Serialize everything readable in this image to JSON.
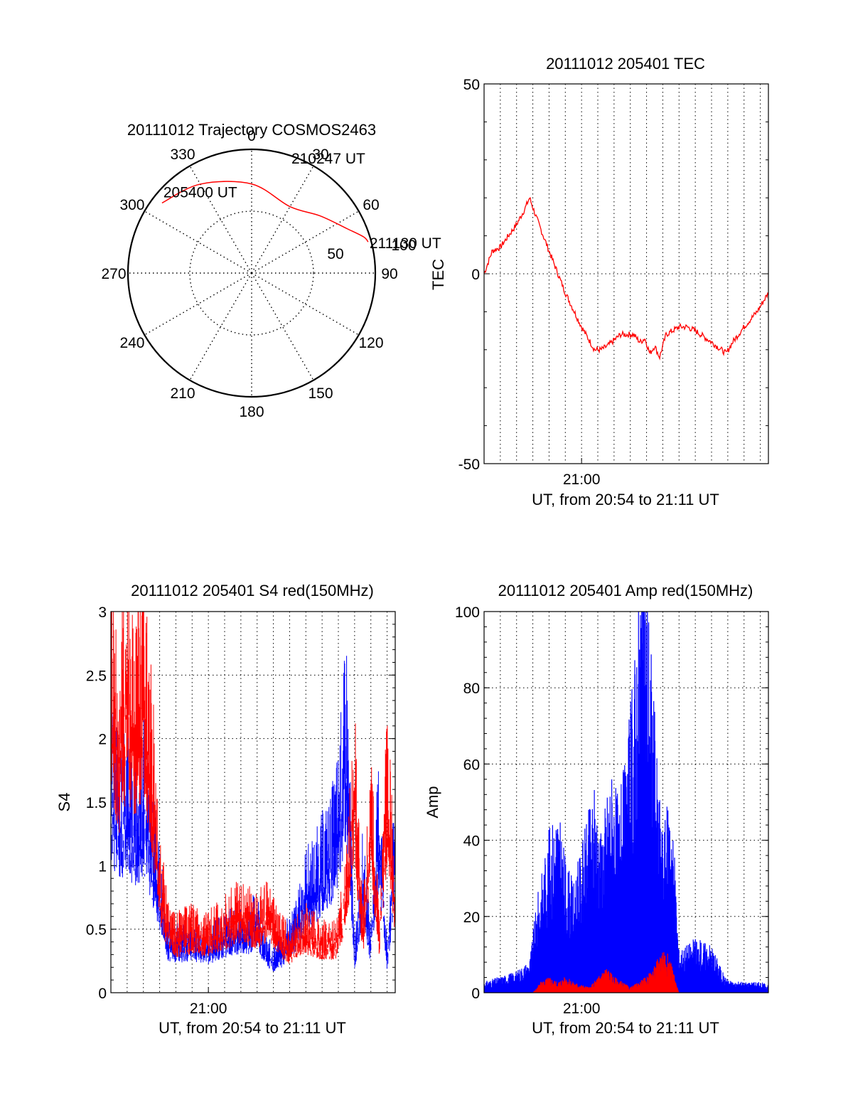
{
  "chart_data": [
    {
      "id": "trajectory",
      "type": "polar",
      "title": "20111012 Trajectory COSMOS2463",
      "azimuth_labels": [
        "0",
        "30",
        "60",
        "90",
        "120",
        "150",
        "180",
        "210",
        "240",
        "270",
        "300",
        "330"
      ],
      "radial_labels": [
        "50",
        "100"
      ],
      "rlim": [
        0,
        100
      ],
      "grid": true,
      "series": [
        {
          "color": "#ff0000",
          "points": [
            {
              "az": -52,
              "r": 92
            },
            {
              "az": -30,
              "r": 83
            },
            {
              "az": 0,
              "r": 72
            },
            {
              "az": 30,
              "r": 62
            },
            {
              "az": 50,
              "r": 72
            },
            {
              "az": 65,
              "r": 85
            },
            {
              "az": 72,
              "r": 95
            },
            {
              "az": 75,
              "r": 97.5
            }
          ]
        }
      ],
      "annotations": [
        {
          "text": "205400 UT",
          "az": -52,
          "r": 92
        },
        {
          "text": "210247 UT",
          "az": 30,
          "r": 62
        },
        {
          "text": "211130 UT",
          "az": 75,
          "r": 97.5
        }
      ]
    },
    {
      "id": "tec",
      "type": "line",
      "title": "20111012 205401 TEC",
      "xlabel": "UT, from 20:54 to 21:11 UT",
      "ylabel": "TEC",
      "xlim": [
        0,
        17.5
      ],
      "ylim": [
        -50,
        50
      ],
      "xticks": [
        {
          "x": 6,
          "label": "21:00"
        }
      ],
      "yticks": [
        "-50",
        "0",
        "50"
      ],
      "grid": true,
      "series": [
        {
          "color": "#ff0000",
          "x": [
            0,
            0.5,
            1.0,
            1.5,
            2.0,
            2.5,
            2.8,
            3.2,
            4.0,
            5.0,
            6.0,
            6.8,
            7.2,
            7.6,
            8.4,
            9.2,
            9.6,
            9.9,
            10.2,
            10.5,
            10.8,
            11.2,
            12.0,
            12.5,
            13.0,
            14.0,
            14.6,
            14.9,
            15.3,
            16.0,
            16.8,
            17.5
          ],
          "y": [
            0,
            6,
            7,
            10,
            13,
            17,
            20,
            15,
            6,
            -5,
            -14,
            -20,
            -20,
            -19,
            -16,
            -16,
            -18,
            -17,
            -21,
            -19,
            -22,
            -16,
            -14,
            -14,
            -15,
            -18,
            -20,
            -21,
            -18,
            -14,
            -10,
            -5
          ]
        }
      ]
    },
    {
      "id": "s4",
      "type": "line",
      "title": "20111012 205401 S4 red(150MHz)",
      "xlabel": "UT, from 20:54 to 21:11 UT",
      "ylabel": "S4",
      "xlim": [
        0,
        17.5
      ],
      "ylim": [
        0,
        3
      ],
      "xticks": [
        {
          "x": 6,
          "label": "21:00"
        }
      ],
      "yticks": [
        "0",
        "0.5",
        "1",
        "1.5",
        "2",
        "2.5",
        "3"
      ],
      "grid": true,
      "series": [
        {
          "color": "#0000ff",
          "x": [
            0,
            0.5,
            1.0,
            1.5,
            2.0,
            2.5,
            3.0,
            3.5,
            4.0,
            5.0,
            6.0,
            7.0,
            8.0,
            8.5,
            9.0,
            9.5,
            10.0,
            10.5,
            11.0,
            11.5,
            12.0,
            12.5,
            13.0,
            13.5,
            14.0,
            14.5,
            15.0,
            15.5,
            16.0,
            16.5,
            17.0,
            17.5
          ],
          "y": [
            1.9,
            1.5,
            1.8,
            1.4,
            1.7,
            1.3,
            0.9,
            0.45,
            0.42,
            0.45,
            0.4,
            0.5,
            0.55,
            0.55,
            0.65,
            0.35,
            0.3,
            0.35,
            0.5,
            0.6,
            0.9,
            0.95,
            1.1,
            1.2,
            1.5,
            2.2,
            0.3,
            1.0,
            0.4,
            1.5,
            0.3,
            1.3
          ]
        },
        {
          "color": "#ff0000",
          "x": [
            0,
            0.5,
            1.0,
            1.5,
            2.0,
            2.5,
            3.0,
            3.5,
            4.0,
            5.0,
            6.0,
            7.0,
            8.0,
            8.5,
            9.0,
            9.5,
            10.0,
            10.5,
            11.0,
            11.5,
            12.0,
            12.5,
            13.0,
            13.5,
            14.0,
            14.5,
            15.0,
            15.5,
            16.0,
            16.5,
            17.0,
            17.5
          ],
          "y": [
            2.9,
            2.2,
            2.8,
            2.4,
            2.7,
            2.0,
            1.0,
            0.6,
            0.5,
            0.55,
            0.5,
            0.6,
            0.7,
            0.65,
            0.6,
            0.7,
            0.6,
            0.5,
            0.4,
            0.5,
            0.55,
            0.5,
            0.45,
            0.45,
            0.5,
            1.0,
            1.8,
            0.5,
            1.6,
            0.5,
            1.8,
            0.8
          ]
        }
      ]
    },
    {
      "id": "amp",
      "type": "line",
      "title": "20111012 205401 Amp red(150MHz)",
      "xlabel": "UT, from 20:54 to 21:11 UT",
      "ylabel": "Amp",
      "xlim": [
        0,
        17.5
      ],
      "ylim": [
        0,
        100
      ],
      "xticks": [
        {
          "x": 6,
          "label": "21:00"
        }
      ],
      "yticks": [
        "0",
        "20",
        "40",
        "60",
        "80",
        "100"
      ],
      "grid": true,
      "series": [
        {
          "color": "#0000ff",
          "x": [
            0,
            1.0,
            2.0,
            2.8,
            3.3,
            4.0,
            4.5,
            5.0,
            5.5,
            6.2,
            6.8,
            7.2,
            7.8,
            8.3,
            8.8,
            9.2,
            9.5,
            9.8,
            10.2,
            10.7,
            11.0,
            11.5,
            12.0,
            13.0,
            14.0,
            14.8,
            15.3,
            16.0,
            17.0,
            17.5
          ],
          "y": [
            2,
            3,
            4,
            6,
            18,
            30,
            35,
            25,
            20,
            30,
            38,
            30,
            42,
            35,
            45,
            60,
            75,
            90,
            70,
            40,
            30,
            38,
            8,
            10,
            9,
            3,
            2,
            2,
            2,
            1.5
          ]
        },
        {
          "color": "#ff0000",
          "x": [
            0,
            3.0,
            3.5,
            4.0,
            4.5,
            5.0,
            5.5,
            6.5,
            7.0,
            7.5,
            8.0,
            8.5,
            9.0,
            9.5,
            10.0,
            10.5,
            11.0,
            11.5,
            11.8,
            12.0,
            17.5
          ],
          "y": [
            0,
            0,
            2,
            3,
            2,
            3,
            2,
            1,
            3,
            5,
            3,
            2,
            1,
            2,
            3,
            5,
            9,
            6,
            2,
            0,
            0
          ]
        }
      ]
    }
  ]
}
